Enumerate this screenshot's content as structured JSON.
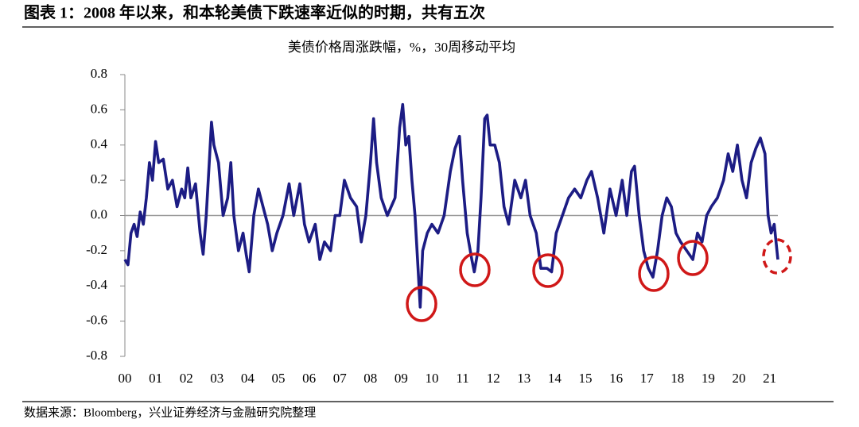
{
  "chart_data": {
    "type": "line",
    "title": "图表 1：2008 年以来，和本轮美债下跌速率近似的时期，共有五次",
    "subtitle": "美债价格周涨跌幅，%，30周移动平均",
    "source": "数据来源：Bloomberg，兴业证券经济与金融研究院整理",
    "x": [
      0,
      0.1,
      0.2,
      0.3,
      0.4,
      0.5,
      0.6,
      0.7,
      0.8,
      0.9,
      1.0,
      1.1,
      1.25,
      1.4,
      1.55,
      1.7,
      1.85,
      1.95,
      2.05,
      2.15,
      2.3,
      2.45,
      2.55,
      2.65,
      2.75,
      2.82,
      2.9,
      3.05,
      3.2,
      3.35,
      3.45,
      3.55,
      3.7,
      3.85,
      3.95,
      4.05,
      4.2,
      4.35,
      4.5,
      4.65,
      4.8,
      4.95,
      5.15,
      5.35,
      5.5,
      5.7,
      5.85,
      6.0,
      6.2,
      6.35,
      6.5,
      6.7,
      6.85,
      7.0,
      7.15,
      7.35,
      7.55,
      7.7,
      7.85,
      8.0,
      8.1,
      8.2,
      8.35,
      8.55,
      8.8,
      8.95,
      9.05,
      9.15,
      9.25,
      9.35,
      9.45,
      9.55,
      9.62,
      9.7,
      9.85,
      10.0,
      10.2,
      10.4,
      10.6,
      10.75,
      10.9,
      11.0,
      11.15,
      11.3,
      11.38,
      11.5,
      11.6,
      11.72,
      11.8,
      11.9,
      12.05,
      12.2,
      12.35,
      12.5,
      12.7,
      12.9,
      13.05,
      13.2,
      13.4,
      13.55,
      13.75,
      13.9,
      14.05,
      14.25,
      14.45,
      14.65,
      14.85,
      15.05,
      15.2,
      15.4,
      15.6,
      15.8,
      16.0,
      16.2,
      16.35,
      16.5,
      16.6,
      16.75,
      16.9,
      17.05,
      17.2,
      17.35,
      17.5,
      17.65,
      17.8,
      17.95,
      18.1,
      18.3,
      18.5,
      18.65,
      18.8,
      18.95,
      19.1,
      19.3,
      19.5,
      19.65,
      19.8,
      19.95,
      20.1,
      20.25,
      20.4,
      20.55,
      20.7,
      20.85,
      20.95,
      21.05,
      21.15,
      21.27
    ],
    "series": [
      {
        "name": "美债价格周涨跌幅",
        "color": "#1c1c84",
        "values": [
          -0.25,
          -0.28,
          -0.1,
          -0.05,
          -0.12,
          0.02,
          -0.05,
          0.1,
          0.3,
          0.2,
          0.42,
          0.3,
          0.32,
          0.15,
          0.2,
          0.05,
          0.15,
          0.1,
          0.27,
          0.1,
          0.18,
          -0.1,
          -0.22,
          0.0,
          0.3,
          0.53,
          0.4,
          0.3,
          0.0,
          0.1,
          0.3,
          0.0,
          -0.2,
          -0.1,
          -0.22,
          -0.32,
          0.0,
          0.15,
          0.05,
          -0.05,
          -0.2,
          -0.1,
          0.0,
          0.18,
          0.0,
          0.18,
          -0.05,
          -0.15,
          -0.05,
          -0.25,
          -0.15,
          -0.2,
          0.0,
          0.0,
          0.2,
          0.1,
          0.05,
          -0.15,
          0.0,
          0.3,
          0.55,
          0.3,
          0.1,
          0.0,
          0.1,
          0.5,
          0.63,
          0.4,
          0.45,
          0.2,
          0.0,
          -0.3,
          -0.52,
          -0.2,
          -0.1,
          -0.05,
          -0.1,
          0.0,
          0.25,
          0.38,
          0.45,
          0.2,
          -0.1,
          -0.25,
          -0.32,
          -0.2,
          0.1,
          0.55,
          0.57,
          0.4,
          0.4,
          0.3,
          0.05,
          -0.05,
          0.2,
          0.1,
          0.2,
          0.0,
          -0.1,
          -0.3,
          -0.3,
          -0.32,
          -0.1,
          0.0,
          0.1,
          0.15,
          0.1,
          0.2,
          0.25,
          0.1,
          -0.1,
          0.15,
          0.0,
          0.2,
          0.0,
          0.25,
          0.28,
          0.0,
          -0.2,
          -0.3,
          -0.35,
          -0.2,
          0.0,
          0.1,
          0.05,
          -0.1,
          -0.15,
          -0.2,
          -0.25,
          -0.1,
          -0.15,
          0.0,
          0.05,
          0.1,
          0.2,
          0.35,
          0.25,
          0.4,
          0.2,
          0.1,
          0.3,
          0.38,
          0.44,
          0.35,
          0.0,
          -0.1,
          -0.05,
          -0.25
        ]
      }
    ],
    "xlim": [
      0,
      21.27
    ],
    "xticks": [
      {
        "value": 0,
        "label": "00"
      },
      {
        "value": 1,
        "label": "01"
      },
      {
        "value": 2,
        "label": "02"
      },
      {
        "value": 3,
        "label": "03"
      },
      {
        "value": 4,
        "label": "04"
      },
      {
        "value": 5,
        "label": "05"
      },
      {
        "value": 6,
        "label": "06"
      },
      {
        "value": 7,
        "label": "07"
      },
      {
        "value": 8,
        "label": "08"
      },
      {
        "value": 9,
        "label": "09"
      },
      10,
      11,
      12,
      13,
      14,
      15,
      16,
      17,
      18,
      19,
      20,
      21
    ],
    "ylim": [
      -0.8,
      0.8
    ],
    "yticks": [
      0.8,
      0.6,
      0.4,
      0.2,
      {
        "value": 0,
        "label": "0.0"
      },
      -0.2,
      -0.4,
      -0.6,
      -0.8
    ]
  }
}
